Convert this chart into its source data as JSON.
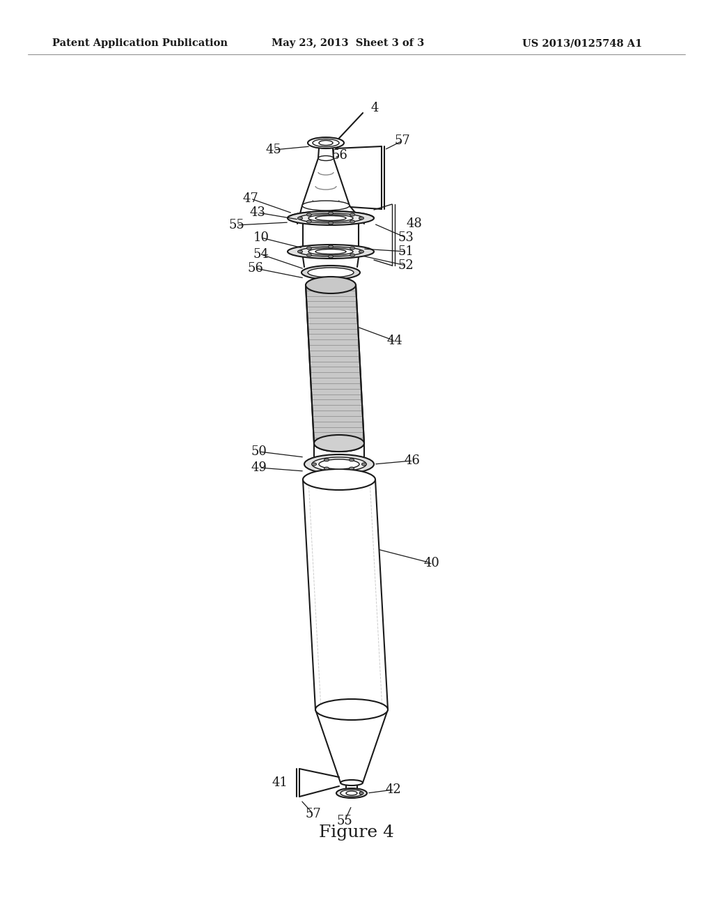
{
  "header_left": "Patent Application Publication",
  "header_center": "May 23, 2013  Sheet 3 of 3",
  "header_right": "US 2013/0125748 A1",
  "figure_label": "Figure 4",
  "bg_color": "#ffffff",
  "line_color": "#1a1a1a",
  "text_color": "#1a1a1a",
  "header_fontsize": 10.5,
  "label_fontsize": 13,
  "figure_label_fontsize": 18
}
